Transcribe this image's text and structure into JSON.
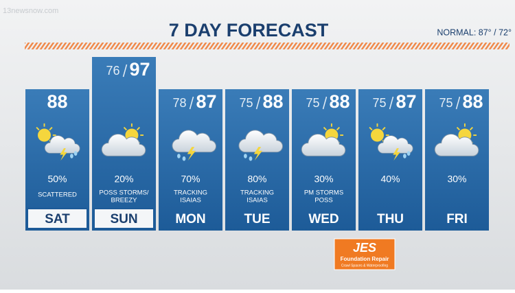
{
  "watermark": "13newsnow.com",
  "header": {
    "title": "7 DAY FORECAST",
    "normal": "NORMAL: 87° / 72°"
  },
  "days": [
    {
      "day": "SAT",
      "high": 88,
      "chance": "50%",
      "desc": [
        "SCATTERED"
      ]
    },
    {
      "day": "SUN",
      "low": 76,
      "high": 97,
      "chance": "20%",
      "desc": [
        "POSS STORMS/",
        "BREEZY"
      ]
    },
    {
      "day": "MON",
      "low": 78,
      "high": 87,
      "chance": "70%",
      "desc": [
        "TRACKING",
        "ISAIAS"
      ]
    },
    {
      "day": "TUE",
      "low": 75,
      "high": 88,
      "chance": "80%",
      "desc": [
        "TRACKING",
        "ISAIAS"
      ]
    },
    {
      "day": "WED",
      "low": 75,
      "high": 88,
      "chance": "30%",
      "desc": [
        "PM STORMS",
        "POSS"
      ]
    },
    {
      "day": "THU",
      "low": 75,
      "high": 87,
      "chance": "40%"
    },
    {
      "day": "FRI",
      "low": 75,
      "high": 88,
      "chance": "30%"
    }
  ],
  "sponsor": {
    "name": "JES",
    "line1": "Foundation Repair",
    "line2": "Crawl Spaces & Waterproofing"
  }
}
